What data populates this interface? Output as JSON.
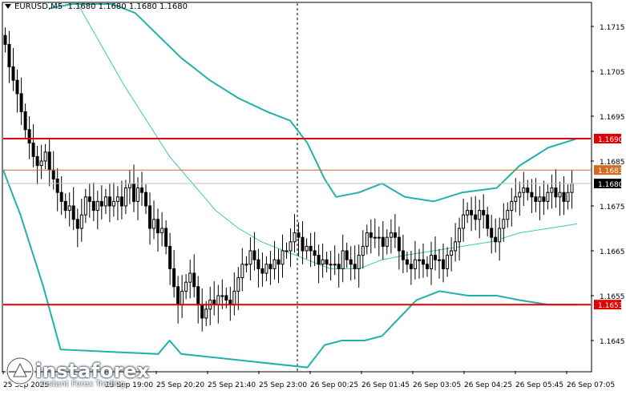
{
  "header": {
    "symbol": "EURUSD,M5",
    "ohlc": "1.1680 1.1680 1.1680 1.1680"
  },
  "brand": {
    "name": "instaforex",
    "tagline": "Instant Forex Trading"
  },
  "colors": {
    "background": "#ffffff",
    "candles": "#000000",
    "bollinger": "#20b2aa",
    "moving_average": "#3cc8b8",
    "support_resistance": "#e00000",
    "bid_line": "#d2691e",
    "current_price_label_bg": "#000000",
    "level_label_bg": "#e00000"
  },
  "chart_data": {
    "type": "candlestick",
    "symbol": "EURUSD",
    "timeframe": "M5",
    "ylim": [
      1.164,
      1.172
    ],
    "y_ticks": [
      "1.1715",
      "1.1705",
      "1.1695",
      "1.1685",
      "1.1675",
      "1.1665",
      "1.1655",
      "1.1645"
    ],
    "x_tick_labels": [
      "25 Sep 2025",
      "25 Sep 19:00",
      "25 Sep 20:20",
      "25 Sep 21:40",
      "25 Sep 23:00",
      "26 Sep 00:25",
      "26 Sep 01:45",
      "26 Sep 03:05",
      "26 Sep 04:25",
      "26 Sep 05:45",
      "26 Sep 07:05"
    ],
    "horizontal_levels": [
      {
        "value": 1.169,
        "label": "1.1690",
        "kind": "resistance"
      },
      {
        "value": 1.1653,
        "label": "1.1653",
        "kind": "support"
      }
    ],
    "bid_line": {
      "value": 1.1683,
      "label": "1.1683"
    },
    "current_price": {
      "value": 1.168,
      "label": "1.1680"
    },
    "session_separator_after": "25 Sep 23:00",
    "candles_close": [
      1.1711,
      1.1706,
      1.1703,
      1.17,
      1.1696,
      1.1692,
      1.1689,
      1.1686,
      1.1684,
      1.1685,
      1.1687,
      1.1683,
      1.1681,
      1.1678,
      1.1676,
      1.1674,
      1.1675,
      1.1672,
      1.167,
      1.1673,
      1.1677,
      1.1676,
      1.1674,
      1.1676,
      1.1675,
      1.1677,
      1.1675,
      1.1676,
      1.1677,
      1.1675,
      1.1679,
      1.168,
      1.1676,
      1.1679,
      1.1678,
      1.1675,
      1.167,
      1.1672,
      1.1669,
      1.167,
      1.1666,
      1.1661,
      1.1657,
      1.1653,
      1.1656,
      1.1658,
      1.166,
      1.1657,
      1.1653,
      1.165,
      1.1652,
      1.1654,
      1.1653,
      1.1655,
      1.1655,
      1.1654,
      1.1653,
      1.1656,
      1.1659,
      1.1662,
      1.1662,
      1.1665,
      1.1663,
      1.1661,
      1.166,
      1.1662,
      1.1661,
      1.1663,
      1.1662,
      1.1665,
      1.1665,
      1.1667,
      1.1669,
      1.1668,
      1.1665,
      1.1666,
      1.1665,
      1.1664,
      1.1662,
      1.1663,
      1.1662,
      1.1662,
      1.1662,
      1.1661,
      1.1665,
      1.1663,
      1.1662,
      1.1661,
      1.1664,
      1.1666,
      1.1669,
      1.1668,
      1.1668,
      1.1668,
      1.1666,
      1.1668,
      1.1669,
      1.1668,
      1.1665,
      1.1663,
      1.1662,
      1.1661,
      1.1663,
      1.1663,
      1.1662,
      1.1661,
      1.1664,
      1.1663,
      1.1663,
      1.1661,
      1.1664,
      1.1665,
      1.1667,
      1.167,
      1.1673,
      1.1674,
      1.1673,
      1.1672,
      1.1674,
      1.1673,
      1.167,
      1.1668,
      1.1667,
      1.167,
      1.1672,
      1.1674,
      1.1676,
      1.1677,
      1.1678,
      1.1679,
      1.1678,
      1.1677,
      1.1676,
      1.1677,
      1.1676,
      1.1678,
      1.1679,
      1.1677,
      1.1678,
      1.1676,
      1.1678,
      1.168
    ],
    "bollinger_upper": [
      {
        "t": 0.08,
        "v": 1.1719
      },
      {
        "t": 0.12,
        "v": 1.172
      },
      {
        "t": 0.19,
        "v": 1.172
      },
      {
        "t": 0.23,
        "v": 1.1718
      },
      {
        "t": 0.27,
        "v": 1.1713
      },
      {
        "t": 0.31,
        "v": 1.1708
      },
      {
        "t": 0.36,
        "v": 1.1703
      },
      {
        "t": 0.41,
        "v": 1.1699
      },
      {
        "t": 0.46,
        "v": 1.1696
      },
      {
        "t": 0.5,
        "v": 1.1694
      },
      {
        "t": 0.53,
        "v": 1.1689
      },
      {
        "t": 0.56,
        "v": 1.1681
      },
      {
        "t": 0.58,
        "v": 1.1677
      },
      {
        "t": 0.62,
        "v": 1.1678
      },
      {
        "t": 0.66,
        "v": 1.168
      },
      {
        "t": 0.7,
        "v": 1.1677
      },
      {
        "t": 0.75,
        "v": 1.1676
      },
      {
        "t": 0.8,
        "v": 1.1678
      },
      {
        "t": 0.86,
        "v": 1.1679
      },
      {
        "t": 0.9,
        "v": 1.1684
      },
      {
        "t": 0.95,
        "v": 1.1688
      },
      {
        "t": 1.0,
        "v": 1.169
      }
    ],
    "bollinger_lower": [
      {
        "t": 0.0,
        "v": 1.1683
      },
      {
        "t": 0.03,
        "v": 1.1673
      },
      {
        "t": 0.07,
        "v": 1.1657
      },
      {
        "t": 0.1,
        "v": 1.1643
      },
      {
        "t": 0.27,
        "v": 1.1642
      },
      {
        "t": 0.29,
        "v": 1.1645
      },
      {
        "t": 0.31,
        "v": 1.1642
      },
      {
        "t": 0.53,
        "v": 1.1639
      },
      {
        "t": 0.56,
        "v": 1.1644
      },
      {
        "t": 0.59,
        "v": 1.1645
      },
      {
        "t": 0.63,
        "v": 1.1645
      },
      {
        "t": 0.66,
        "v": 1.1646
      },
      {
        "t": 0.69,
        "v": 1.165
      },
      {
        "t": 0.72,
        "v": 1.1654
      },
      {
        "t": 0.76,
        "v": 1.1656
      },
      {
        "t": 0.81,
        "v": 1.1655
      },
      {
        "t": 0.86,
        "v": 1.1655
      },
      {
        "t": 0.9,
        "v": 1.1654
      },
      {
        "t": 0.95,
        "v": 1.1653
      },
      {
        "t": 1.0,
        "v": 1.1653
      }
    ],
    "moving_average": [
      {
        "t": 0.13,
        "v": 1.172
      },
      {
        "t": 0.17,
        "v": 1.1711
      },
      {
        "t": 0.21,
        "v": 1.1702
      },
      {
        "t": 0.25,
        "v": 1.1694
      },
      {
        "t": 0.29,
        "v": 1.1686
      },
      {
        "t": 0.33,
        "v": 1.168
      },
      {
        "t": 0.37,
        "v": 1.1674
      },
      {
        "t": 0.41,
        "v": 1.167
      },
      {
        "t": 0.45,
        "v": 1.1667
      },
      {
        "t": 0.49,
        "v": 1.1665
      },
      {
        "t": 0.53,
        "v": 1.1663
      },
      {
        "t": 0.57,
        "v": 1.1661
      },
      {
        "t": 0.62,
        "v": 1.1661
      },
      {
        "t": 0.66,
        "v": 1.1663
      },
      {
        "t": 0.7,
        "v": 1.1664
      },
      {
        "t": 0.75,
        "v": 1.1665
      },
      {
        "t": 0.8,
        "v": 1.1666
      },
      {
        "t": 0.85,
        "v": 1.1667
      },
      {
        "t": 0.9,
        "v": 1.1669
      },
      {
        "t": 0.95,
        "v": 1.167
      },
      {
        "t": 1.0,
        "v": 1.1671
      }
    ]
  }
}
